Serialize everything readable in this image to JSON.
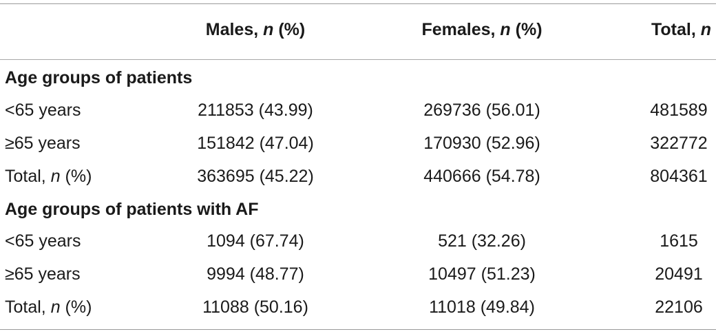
{
  "header": {
    "males": {
      "text": "Males, ",
      "n": "n",
      "pct": " (%)"
    },
    "females": {
      "text": "Females, ",
      "n": "n",
      "pct": " (%)"
    },
    "total": {
      "text": "Total, ",
      "n": "n"
    }
  },
  "sections": [
    {
      "title": "Age groups of patients",
      "rows": [
        {
          "label": "<65 years",
          "males": "211853 (43.99)",
          "females": "269736 (56.01)",
          "total": "481589"
        },
        {
          "label": "≥65 years",
          "males": "151842 (47.04)",
          "females": "170930 (52.96)",
          "total": "322772"
        },
        {
          "label_pre": "Total, ",
          "label_n": "n",
          "label_post": " (%)",
          "males": "363695 (45.22)",
          "females": "440666 (54.78)",
          "total": "804361"
        }
      ]
    },
    {
      "title": "Age groups of patients with AF",
      "rows": [
        {
          "label": "<65 years",
          "males": "1094 (67.74)",
          "females": "521 (32.26)",
          "total": "1615"
        },
        {
          "label": "≥65 years",
          "males": "9994 (48.77)",
          "females": "10497 (51.23)",
          "total": "20491"
        },
        {
          "label_pre": "Total, ",
          "label_n": "n",
          "label_post": " (%)",
          "males": "11088 (50.16)",
          "females": "11018 (49.84)",
          "total": "22106"
        }
      ]
    }
  ]
}
